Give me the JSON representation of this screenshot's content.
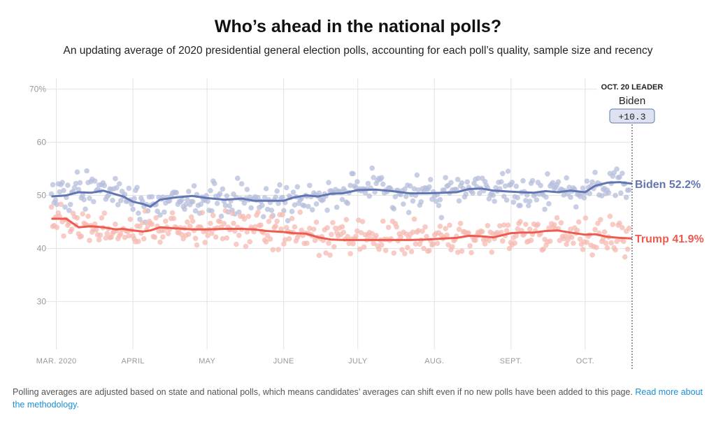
{
  "title": "Who’s ahead in the national polls?",
  "subtitle": "An updating average of 2020 presidential general election polls, accounting for each poll’s quality, sample size and recency",
  "footer": {
    "text": "Polling averages are adjusted based on state and national polls, which means candidates’ averages can shift even if no new polls have been added to this page. ",
    "link": "Read more about the methodology."
  },
  "leader": {
    "heading": "OCT. 20 LEADER",
    "name": "Biden",
    "margin": "+10.3"
  },
  "chart_data": {
    "type": "line",
    "x_unit": "day of 2020",
    "xlim": [
      "2020-02-27",
      "2020-10-20"
    ],
    "ylim": [
      21,
      71
    ],
    "y_ticks": [
      30,
      40,
      50,
      60,
      70
    ],
    "y_tick_labels": [
      "30",
      "40",
      "50",
      "60",
      "70%"
    ],
    "x_ticks": [
      {
        "date": "2020-03-01",
        "label": "MAR. 2020"
      },
      {
        "date": "2020-04-01",
        "label": "APRIL"
      },
      {
        "date": "2020-05-01",
        "label": "MAY"
      },
      {
        "date": "2020-06-01",
        "label": "JUNE"
      },
      {
        "date": "2020-07-01",
        "label": "JULY"
      },
      {
        "date": "2020-08-01",
        "label": "AUG."
      },
      {
        "date": "2020-09-01",
        "label": "SEPT."
      },
      {
        "date": "2020-10-01",
        "label": "OCT."
      }
    ],
    "grid": true,
    "series": [
      {
        "name": "Biden",
        "color": "#6275b3",
        "dot_color": "#b5bddb",
        "end_label": "Biden 52.2%",
        "x": [
          "2020-02-28",
          "2020-03-05",
          "2020-03-10",
          "2020-03-15",
          "2020-03-20",
          "2020-03-25",
          "2020-03-28",
          "2020-04-01",
          "2020-04-05",
          "2020-04-08",
          "2020-04-12",
          "2020-04-18",
          "2020-04-25",
          "2020-05-01",
          "2020-05-08",
          "2020-05-15",
          "2020-05-20",
          "2020-05-25",
          "2020-06-01",
          "2020-06-05",
          "2020-06-10",
          "2020-06-15",
          "2020-06-20",
          "2020-06-25",
          "2020-07-01",
          "2020-07-08",
          "2020-07-15",
          "2020-07-22",
          "2020-07-29",
          "2020-08-05",
          "2020-08-10",
          "2020-08-15",
          "2020-08-20",
          "2020-08-25",
          "2020-09-01",
          "2020-09-05",
          "2020-09-10",
          "2020-09-15",
          "2020-09-20",
          "2020-09-25",
          "2020-10-01",
          "2020-10-05",
          "2020-10-10",
          "2020-10-15",
          "2020-10-20"
        ],
        "values": [
          49.8,
          50.0,
          50.6,
          50.5,
          50.9,
          50.2,
          49.8,
          48.8,
          48.4,
          47.9,
          49.2,
          49.6,
          49.9,
          49.5,
          49.2,
          49.4,
          49.0,
          49.0,
          49.0,
          49.6,
          50.0,
          49.8,
          50.3,
          50.4,
          51.0,
          51.1,
          50.8,
          50.4,
          50.4,
          50.5,
          50.6,
          51.2,
          51.3,
          50.9,
          50.7,
          50.6,
          50.5,
          50.8,
          50.6,
          50.9,
          50.6,
          51.8,
          52.4,
          52.5,
          52.2
        ]
      },
      {
        "name": "Trump",
        "color": "#ee5a4e",
        "dot_color": "#f6b9b2",
        "end_label": "Trump 41.9%",
        "x": [
          "2020-02-28",
          "2020-03-05",
          "2020-03-10",
          "2020-03-15",
          "2020-03-20",
          "2020-03-25",
          "2020-03-28",
          "2020-04-01",
          "2020-04-05",
          "2020-04-08",
          "2020-04-12",
          "2020-04-18",
          "2020-04-25",
          "2020-05-01",
          "2020-05-08",
          "2020-05-15",
          "2020-05-20",
          "2020-05-25",
          "2020-06-01",
          "2020-06-05",
          "2020-06-10",
          "2020-06-15",
          "2020-06-20",
          "2020-06-25",
          "2020-07-01",
          "2020-07-08",
          "2020-07-15",
          "2020-07-22",
          "2020-07-29",
          "2020-08-05",
          "2020-08-10",
          "2020-08-15",
          "2020-08-20",
          "2020-08-25",
          "2020-09-01",
          "2020-09-05",
          "2020-09-10",
          "2020-09-15",
          "2020-09-20",
          "2020-09-25",
          "2020-10-01",
          "2020-10-05",
          "2020-10-10",
          "2020-10-15",
          "2020-10-20"
        ],
        "values": [
          45.6,
          45.6,
          44.0,
          44.2,
          44.0,
          43.6,
          43.7,
          43.4,
          43.2,
          43.4,
          44.0,
          43.8,
          43.6,
          43.6,
          43.7,
          43.7,
          43.6,
          43.3,
          43.1,
          42.9,
          42.8,
          42.1,
          41.7,
          41.6,
          41.6,
          41.6,
          41.6,
          41.6,
          41.7,
          41.9,
          42.0,
          42.4,
          42.3,
          42.1,
          42.9,
          43.0,
          43.0,
          43.3,
          43.4,
          43.0,
          42.6,
          42.7,
          42.2,
          42.0,
          41.9
        ]
      }
    ]
  }
}
